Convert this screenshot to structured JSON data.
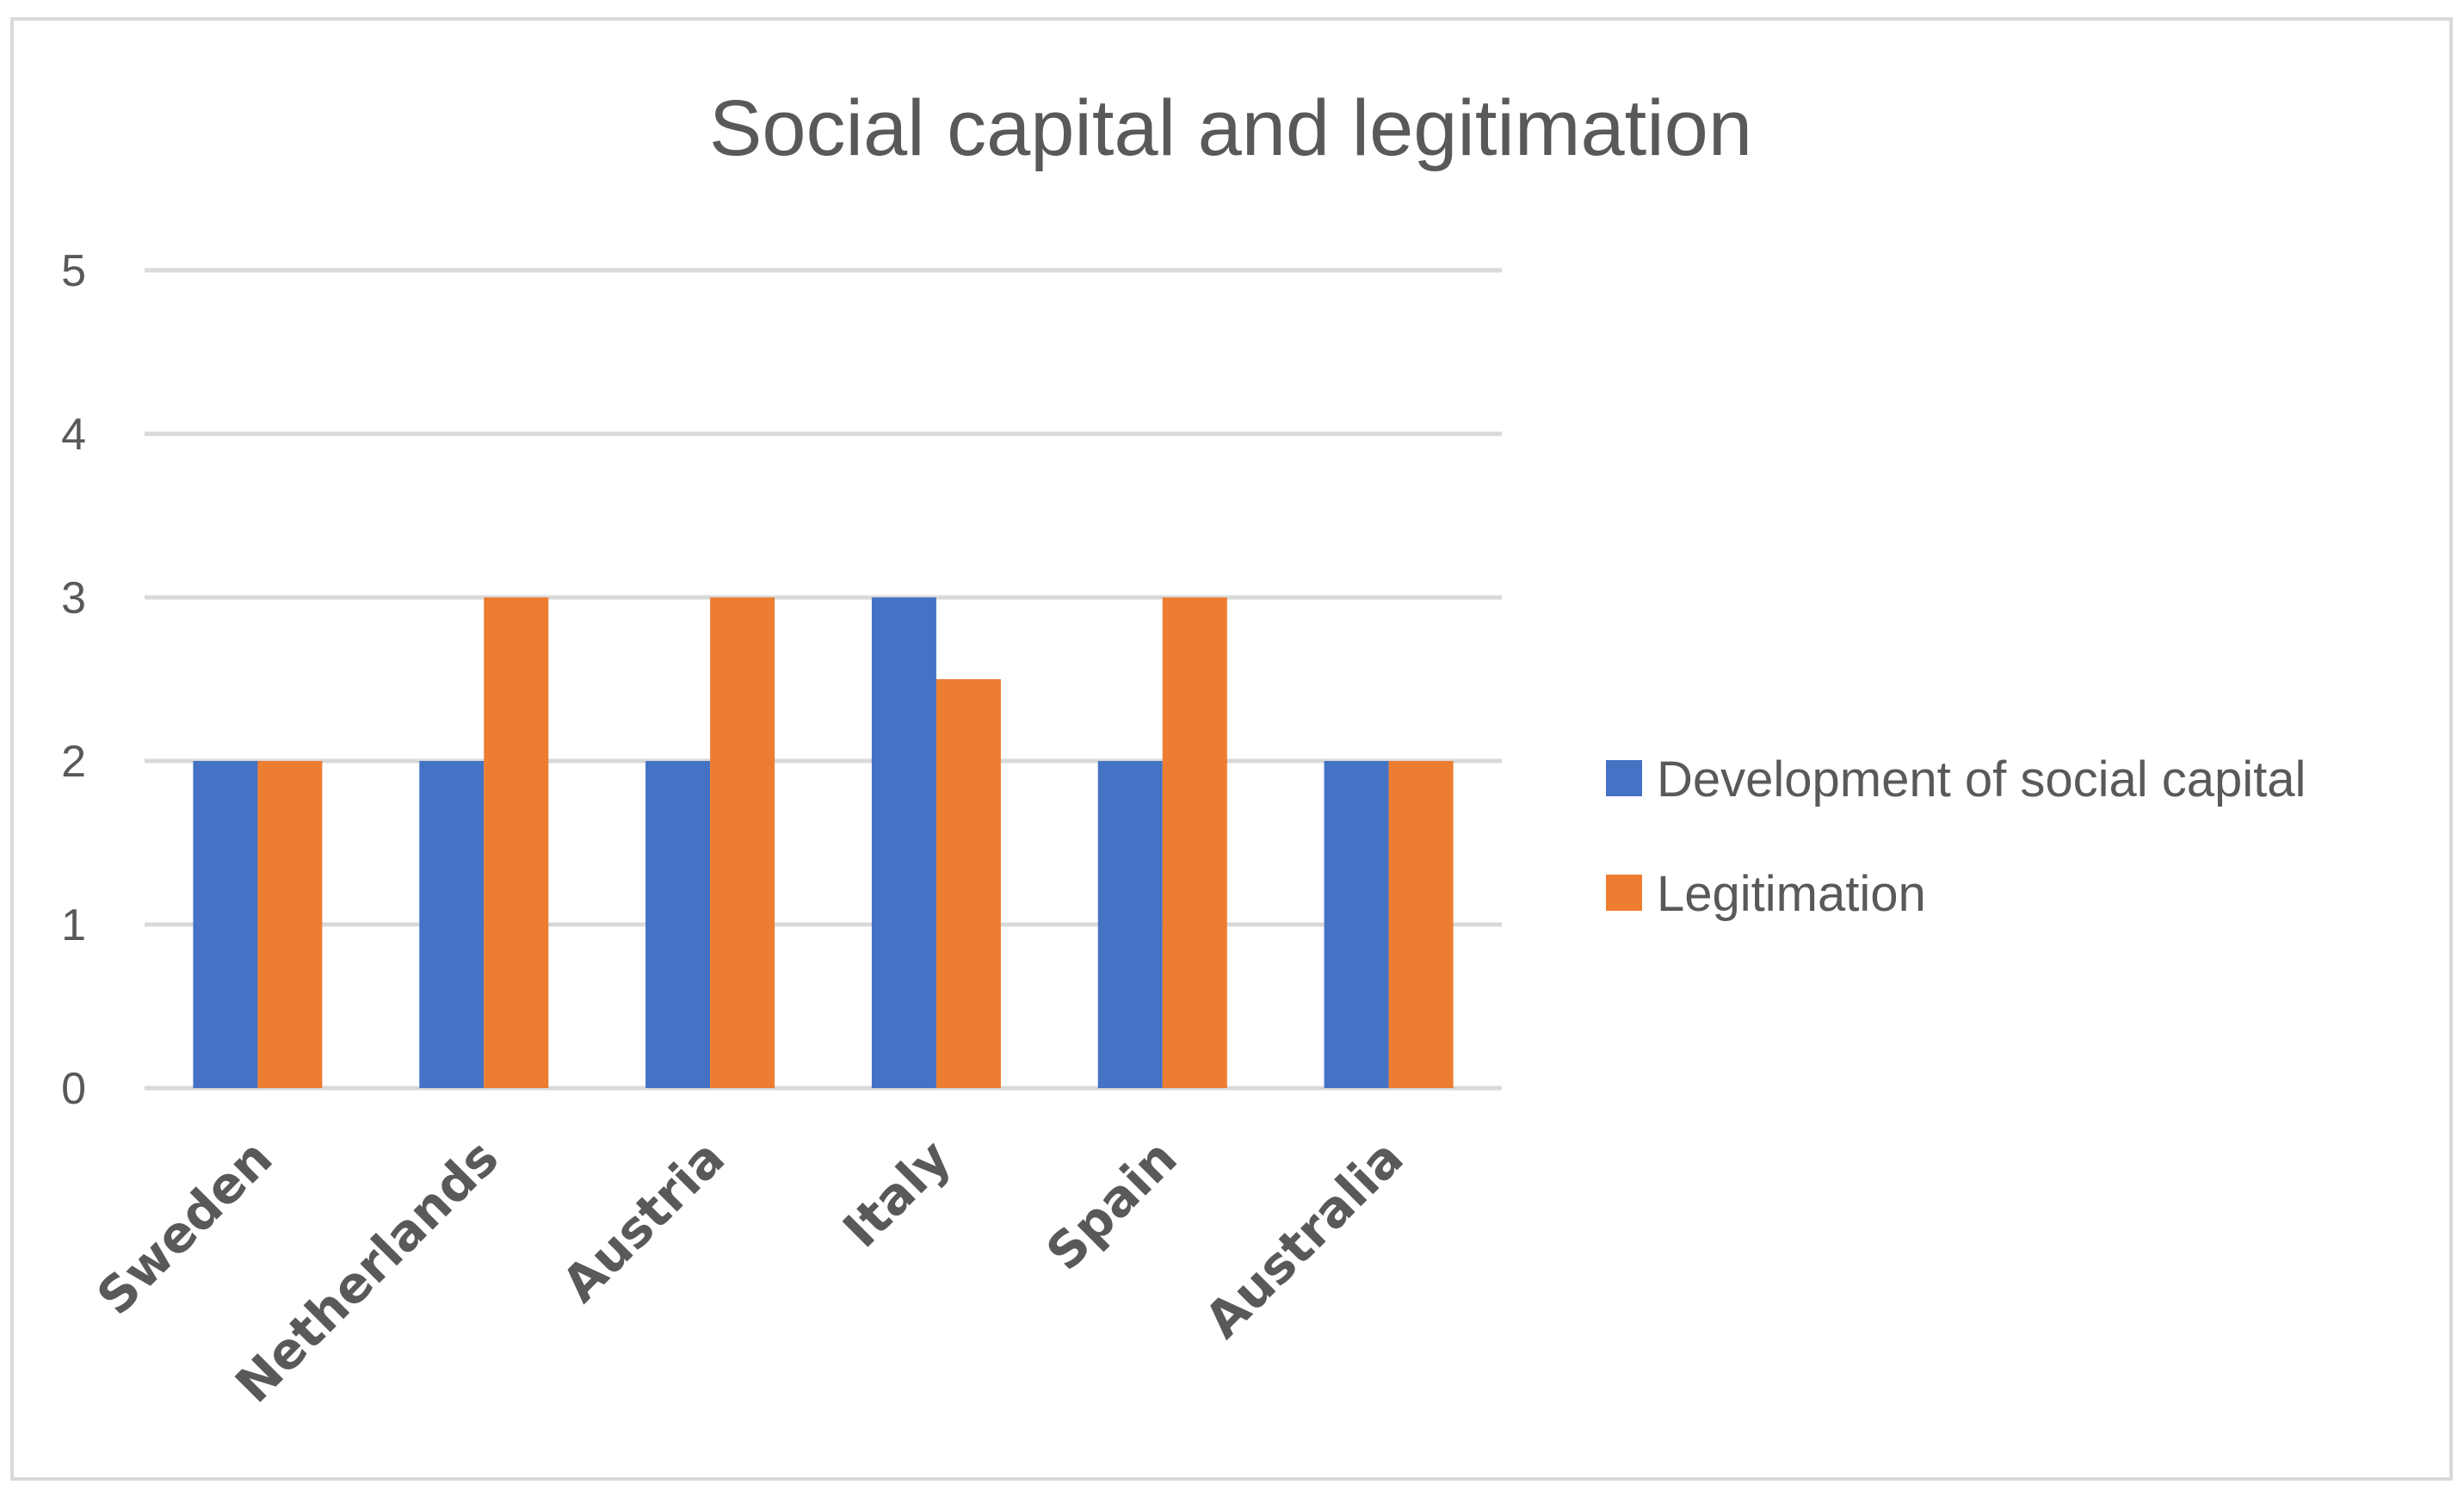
{
  "chart_data": {
    "type": "bar",
    "title": "Social capital and legitimation",
    "categories": [
      "Sweden",
      "Netherlands",
      "Austria",
      "Italy",
      "Spain",
      "Australia"
    ],
    "series": [
      {
        "name": "Development of social capital",
        "color": "#4472C4",
        "values": [
          2,
          2,
          2,
          3,
          2,
          2
        ]
      },
      {
        "name": "Legitimation",
        "color": "#ED7D31",
        "values": [
          2,
          3,
          3,
          2.5,
          3,
          2
        ]
      }
    ],
    "yticks": [
      "0",
      "1",
      "2",
      "3",
      "4",
      "5"
    ],
    "ylim": [
      0,
      5
    ],
    "xlabel": "",
    "ylabel": "",
    "grid": true,
    "legend_position": "right"
  }
}
